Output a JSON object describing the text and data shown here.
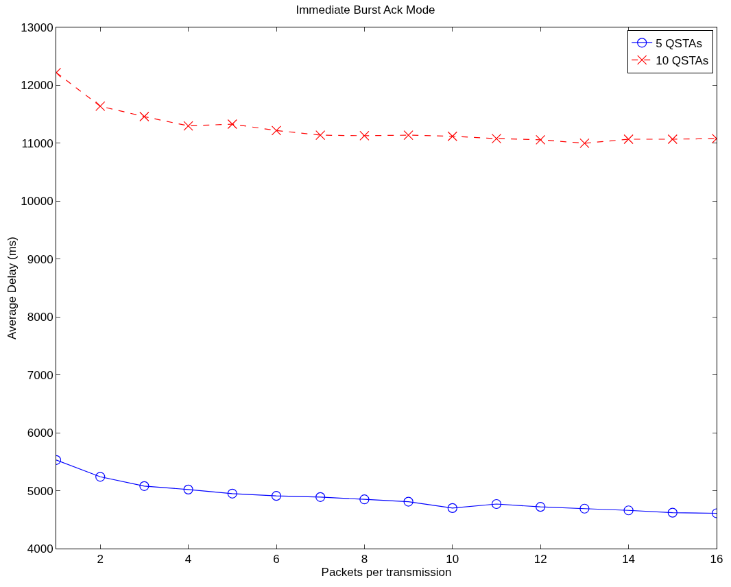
{
  "chart_data": {
    "type": "line",
    "title": "Immediate Burst Ack Mode",
    "xlabel": "Packets per transmission",
    "ylabel": "Average Delay (ms)",
    "x": [
      1,
      2,
      3,
      4,
      5,
      6,
      7,
      8,
      9,
      10,
      11,
      12,
      13,
      14,
      15,
      16
    ],
    "series": [
      {
        "name": "5 QSTAs",
        "color": "#0000ff",
        "marker": "circle",
        "line_style": "solid",
        "values": [
          5530,
          5240,
          5080,
          5020,
          4950,
          4910,
          4890,
          4850,
          4810,
          4700,
          4770,
          4720,
          4690,
          4660,
          4620,
          4610
        ]
      },
      {
        "name": "10 QSTAs",
        "color": "#ff0000",
        "marker": "cross",
        "line_style": "dashed",
        "values": [
          12220,
          11640,
          11460,
          11300,
          11330,
          11220,
          11140,
          11130,
          11140,
          11120,
          11080,
          11060,
          11000,
          11070,
          11070,
          11080
        ]
      }
    ],
    "xlim": [
      1,
      16
    ],
    "xticks": [
      2,
      4,
      6,
      8,
      10,
      12,
      14,
      16
    ],
    "ylim": [
      4000,
      13000
    ],
    "yticks": [
      4000,
      5000,
      6000,
      7000,
      8000,
      9000,
      10000,
      11000,
      12000,
      13000
    ],
    "grid": false,
    "legend": "top right"
  }
}
